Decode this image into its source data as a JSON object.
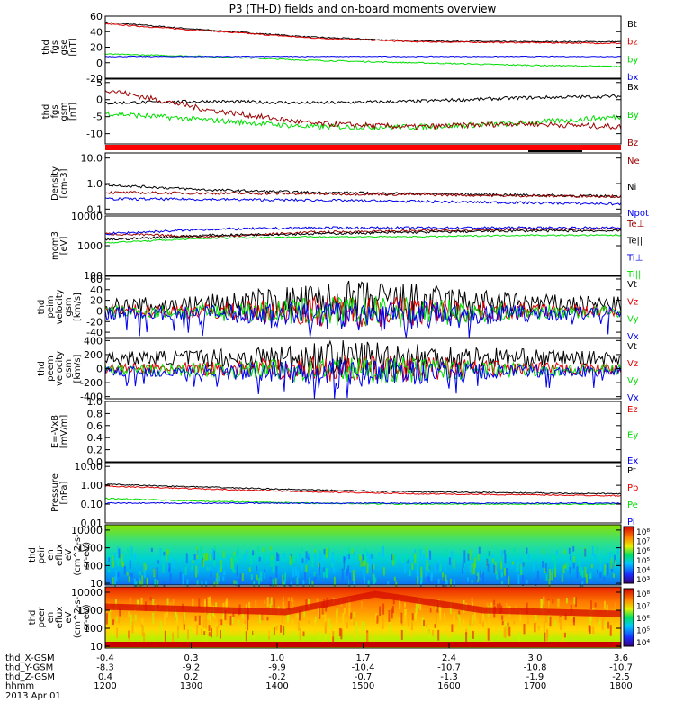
{
  "title": "P3 (TH-D) fields and on-board moments overview",
  "date": "2013 Apr 01",
  "time_axis": {
    "label": "hhmm",
    "ticks": [
      "1200",
      "1300",
      "1400",
      "1500",
      "1600",
      "1700",
      "1800"
    ],
    "rows": [
      {
        "label": "thd_X-GSM",
        "values": [
          "-0.4",
          "0.3",
          "1.0",
          "1.7",
          "2.4",
          "3.0",
          "3.6"
        ]
      },
      {
        "label": "thd_Y-GSM",
        "values": [
          "-8.3",
          "-9.2",
          "-9.9",
          "-10.4",
          "-10.7",
          "-10.8",
          "-10.7"
        ]
      },
      {
        "label": "thd_Z-GSM",
        "values": [
          "0.4",
          "0.2",
          "-0.2",
          "-0.7",
          "-1.3",
          "-1.9",
          "-2.5"
        ]
      }
    ]
  },
  "colors": {
    "black": "#000000",
    "red": "#e00000",
    "green": "#00dd00",
    "blue": "#0000ee",
    "darkred": "#9a0000"
  },
  "panels": [
    {
      "ylabel": [
        "thd",
        "fgs",
        "gse",
        "[nT]"
      ],
      "ticks": [
        {
          "v": 60,
          "t": "60"
        },
        {
          "v": 40,
          "t": "40"
        },
        {
          "v": 20,
          "t": "20"
        },
        {
          "v": 0,
          "t": "0"
        },
        {
          "v": -20,
          "t": "-20"
        }
      ],
      "legend": [
        {
          "t": "Bt",
          "c": "black"
        },
        {
          "t": "bz",
          "c": "red"
        },
        {
          "t": "by",
          "c": "green"
        },
        {
          "t": "bx",
          "c": "blue"
        }
      ]
    },
    {
      "ylabel": [
        "thd",
        "fgs",
        "gsm",
        "[nT]"
      ],
      "ticks": [
        {
          "v": 5,
          "t": "5"
        },
        {
          "v": 0,
          "t": "0"
        },
        {
          "v": -5,
          "t": "-5"
        },
        {
          "v": -10,
          "t": "-10"
        }
      ],
      "legend": [
        {
          "t": "Bx",
          "c": "black"
        },
        {
          "t": "By",
          "c": "green"
        },
        {
          "t": "Bz",
          "c": "darkred"
        }
      ]
    },
    {
      "ylabel": [
        "Density",
        "[cm-3]"
      ],
      "ticks": [
        {
          "v": 1,
          "t": "10.0"
        },
        {
          "v": 0,
          "t": "1.0"
        },
        {
          "v": -1,
          "t": "0.1"
        }
      ],
      "legend": [
        {
          "t": "Ne",
          "c": "darkred"
        },
        {
          "t": "Ni",
          "c": "black"
        },
        {
          "t": "Npot",
          "c": "blue"
        }
      ]
    },
    {
      "ylabel": [
        "mom3",
        "[eV]"
      ],
      "ticks": [
        {
          "v": 4,
          "t": "10000"
        },
        {
          "v": 3,
          "t": "1000"
        },
        {
          "v": 2,
          "t": "100"
        }
      ],
      "legend": [
        {
          "t": "Te⊥",
          "c": "darkred"
        },
        {
          "t": "Te||",
          "c": "black"
        },
        {
          "t": "Ti⊥",
          "c": "blue"
        },
        {
          "t": "Ti||",
          "c": "green"
        }
      ]
    },
    {
      "ylabel": [
        "thd",
        "peim",
        "velocity",
        "gsm",
        "[km/s]"
      ],
      "ticks": [
        {
          "v": 60,
          "t": "60"
        },
        {
          "v": 40,
          "t": "40"
        },
        {
          "v": 20,
          "t": "20"
        },
        {
          "v": 0,
          "t": "0"
        },
        {
          "v": -20,
          "t": "-20"
        },
        {
          "v": -40,
          "t": "-40"
        }
      ],
      "legend": [
        {
          "t": "Vt",
          "c": "black"
        },
        {
          "t": "Vz",
          "c": "red"
        },
        {
          "t": "Vy",
          "c": "green"
        },
        {
          "t": "Vx",
          "c": "blue"
        }
      ]
    },
    {
      "ylabel": [
        "thd",
        "peem",
        "velocity",
        "gsm",
        "[km/s]"
      ],
      "ticks": [
        {
          "v": 400,
          "t": "400"
        },
        {
          "v": 200,
          "t": "200"
        },
        {
          "v": 0,
          "t": "0"
        },
        {
          "v": -200,
          "t": "-200"
        },
        {
          "v": -400,
          "t": "-400"
        }
      ],
      "legend": [
        {
          "t": "Vt",
          "c": "black"
        },
        {
          "t": "Vz",
          "c": "red"
        },
        {
          "t": "Vy",
          "c": "green"
        },
        {
          "t": "Vx",
          "c": "blue"
        }
      ]
    },
    {
      "ylabel": [
        "E=-VxB",
        "[mV/m]"
      ],
      "ticks": [
        {
          "v": 1,
          "t": "1.0"
        },
        {
          "v": 0.8,
          "t": "0.8"
        },
        {
          "v": 0.6,
          "t": "0.6"
        },
        {
          "v": 0.4,
          "t": "0.4"
        },
        {
          "v": 0.2,
          "t": "0.2"
        },
        {
          "v": 0,
          "t": "0.0"
        }
      ],
      "legend": [
        {
          "t": "Ez",
          "c": "red"
        },
        {
          "t": "Ey",
          "c": "green"
        },
        {
          "t": "Ex",
          "c": "blue"
        }
      ]
    },
    {
      "ylabel": [
        "Pressure",
        "[nPa]"
      ],
      "ticks": [
        {
          "v": 1,
          "t": "10.00"
        },
        {
          "v": 0,
          "t": "1.00"
        },
        {
          "v": -1,
          "t": "0.10"
        },
        {
          "v": -2,
          "t": "0.01"
        }
      ],
      "legend": [
        {
          "t": "Pt",
          "c": "black"
        },
        {
          "t": "Pb",
          "c": "red"
        },
        {
          "t": "Pe",
          "c": "green"
        },
        {
          "t": "Pi",
          "c": "blue"
        }
      ]
    },
    {
      "ylabel": [
        "thd",
        "peir",
        "en",
        "eflux",
        "eV",
        "(cm^2-s-",
        "sr-eV)"
      ],
      "ticks": [
        {
          "v": 4,
          "t": "10000"
        },
        {
          "v": 3,
          "t": "1000"
        },
        {
          "v": 2,
          "t": "100"
        },
        {
          "v": 1,
          "t": "10"
        }
      ],
      "cbar": [
        "10⁸",
        "10⁷",
        "10⁶",
        "10⁵",
        "10⁴",
        "10³"
      ]
    },
    {
      "ylabel": [
        "thd",
        "peer",
        "en",
        "eflux",
        "eV",
        "(cm^2-s-",
        "sr-eV)"
      ],
      "ticks": [
        {
          "v": 4,
          "t": "10000"
        },
        {
          "v": 3,
          "t": "1000"
        },
        {
          "v": 2,
          "t": "100"
        },
        {
          "v": 1,
          "t": "10"
        }
      ],
      "cbar": [
        "10⁸",
        "10⁷",
        "10⁶",
        "10⁵",
        "10⁴"
      ]
    }
  ],
  "chart_data": {
    "type": "line",
    "x_axis": {
      "label": "hhmm",
      "ticks": [
        "1200",
        "1300",
        "1400",
        "1500",
        "1600",
        "1700",
        "1800"
      ]
    },
    "panels": [
      {
        "name": "thd_fgs_gse",
        "ylim": [
          -20,
          60
        ],
        "series": [
          {
            "name": "Bt",
            "color": "black",
            "x": [
              0,
              0.2,
              0.4,
              0.6,
              0.8,
              1
            ],
            "values": [
              52,
              42,
              33,
              28,
              27,
              27
            ]
          },
          {
            "name": "bz",
            "color": "red",
            "x": [
              0,
              0.2,
              0.4,
              0.6,
              0.8,
              1
            ],
            "values": [
              50,
              41,
              32,
              27,
              26,
              25
            ]
          },
          {
            "name": "by",
            "color": "green",
            "x": [
              0,
              0.2,
              0.4,
              0.6,
              0.8,
              1
            ],
            "values": [
              11,
              8,
              3,
              0,
              -3,
              -5
            ]
          },
          {
            "name": "bx",
            "color": "blue",
            "x": [
              0,
              0.2,
              0.4,
              0.6,
              0.8,
              1
            ],
            "values": [
              8,
              8,
              8,
              8,
              8,
              8
            ]
          }
        ]
      },
      {
        "name": "thd_fgs_gsm",
        "ylim": [
          -13,
          6
        ],
        "series": [
          {
            "name": "Bx",
            "color": "black",
            "x": [
              0,
              0.2,
              0.4,
              0.6,
              0.8,
              1
            ],
            "values": [
              -1,
              -0.5,
              -1,
              -0.5,
              0.5,
              1
            ]
          },
          {
            "name": "By",
            "color": "green",
            "x": [
              0,
              0.2,
              0.4,
              0.6,
              0.8,
              1
            ],
            "values": [
              -4,
              -6,
              -8,
              -8,
              -7,
              -5
            ]
          },
          {
            "name": "Bz",
            "color": "darkred",
            "x": [
              0,
              0.2,
              0.4,
              0.6,
              0.8,
              1
            ],
            "values": [
              3,
              -3,
              -7,
              -8,
              -7,
              -8
            ]
          }
        ]
      },
      {
        "name": "Density",
        "ylim": [
          -1.2,
          1.2
        ],
        "log": true,
        "series": [
          {
            "name": "Ni",
            "color": "black",
            "x": [
              0,
              0.2,
              0.4,
              0.6,
              0.8,
              1
            ],
            "values": [
              -0.05,
              -0.25,
              -0.35,
              -0.4,
              -0.45,
              -0.5
            ]
          },
          {
            "name": "Ne",
            "color": "darkred",
            "x": [
              0,
              0.2,
              0.4,
              0.6,
              0.8,
              1
            ],
            "values": [
              -0.35,
              -0.38,
              -0.4,
              -0.43,
              -0.48,
              -0.5
            ]
          },
          {
            "name": "Npot",
            "color": "blue",
            "x": [
              0,
              0.2,
              0.4,
              0.6,
              0.8,
              1
            ],
            "values": [
              -0.6,
              -0.62,
              -0.65,
              -0.7,
              -0.75,
              -0.8
            ]
          }
        ]
      },
      {
        "name": "mom3",
        "ylim": [
          2,
          4
        ],
        "log": true,
        "series": [
          {
            "name": "Te⊥",
            "color": "darkred",
            "x": [
              0,
              0.2,
              0.4,
              0.6,
              0.8,
              1
            ],
            "values": [
              3.4,
              3.3,
              3.45,
              3.5,
              3.55,
              3.55
            ]
          },
          {
            "name": "Te||",
            "color": "black",
            "x": [
              0,
              0.2,
              0.4,
              0.6,
              0.8,
              1
            ],
            "values": [
              3.2,
              3.35,
              3.4,
              3.45,
              3.5,
              3.5
            ]
          },
          {
            "name": "Ti⊥",
            "color": "blue",
            "x": [
              0,
              0.2,
              0.4,
              0.6,
              0.8,
              1
            ],
            "values": [
              3.4,
              3.55,
              3.6,
              3.6,
              3.6,
              3.6
            ]
          },
          {
            "name": "Ti||",
            "color": "green",
            "x": [
              0,
              0.2,
              0.4,
              0.6,
              0.8,
              1
            ],
            "values": [
              3.1,
              3.25,
              3.3,
              3.3,
              3.35,
              3.35
            ]
          }
        ]
      },
      {
        "name": "peim_velocity",
        "ylim": [
          -50,
          65
        ],
        "series": [
          {
            "name": "Vt",
            "color": "black",
            "x": [
              0,
              0.5,
              1
            ],
            "values": [
              8,
              18,
              12
            ]
          },
          {
            "name": "Vz",
            "color": "red",
            "x": [
              0,
              0.5,
              1
            ],
            "values": [
              0,
              0,
              0
            ]
          },
          {
            "name": "Vy",
            "color": "green",
            "x": [
              0,
              0.5,
              1
            ],
            "values": [
              -2,
              -2,
              -2
            ]
          },
          {
            "name": "Vx",
            "color": "blue",
            "x": [
              0,
              0.5,
              1
            ],
            "values": [
              -4,
              -8,
              -4
            ]
          }
        ]
      },
      {
        "name": "peem_velocity",
        "ylim": [
          -430,
          430
        ],
        "series": [
          {
            "name": "Vt",
            "color": "black",
            "x": [
              0,
              0.5,
              1
            ],
            "values": [
              150,
              160,
              150
            ]
          },
          {
            "name": "Vz",
            "color": "red",
            "x": [
              0,
              0.5,
              1
            ],
            "values": [
              0,
              0,
              0
            ]
          },
          {
            "name": "Vy",
            "color": "green",
            "x": [
              0,
              0.5,
              1
            ],
            "values": [
              -20,
              -20,
              -20
            ]
          },
          {
            "name": "Vx",
            "color": "blue",
            "x": [
              0,
              0.5,
              1
            ],
            "values": [
              -40,
              -50,
              -40
            ]
          }
        ]
      },
      {
        "name": "E=-VxB",
        "ylim": [
          0,
          1
        ],
        "series": []
      },
      {
        "name": "Pressure",
        "ylim": [
          -2,
          1.2
        ],
        "log": true,
        "series": [
          {
            "name": "Pt",
            "color": "black",
            "x": [
              0,
              0.2,
              0.4,
              0.6,
              0.8,
              1
            ],
            "values": [
              0.05,
              -0.1,
              -0.25,
              -0.35,
              -0.4,
              -0.45
            ]
          },
          {
            "name": "Pb",
            "color": "red",
            "x": [
              0,
              0.2,
              0.4,
              0.6,
              0.8,
              1
            ],
            "values": [
              -0.05,
              -0.2,
              -0.35,
              -0.45,
              -0.5,
              -0.55
            ]
          },
          {
            "name": "Pe",
            "color": "green",
            "x": [
              0,
              0.2,
              0.4,
              0.6,
              0.8,
              1
            ],
            "values": [
              -0.7,
              -0.85,
              -0.95,
              -1.0,
              -1.0,
              -1.0
            ]
          },
          {
            "name": "Pi",
            "color": "blue",
            "x": [
              0,
              0.2,
              0.4,
              0.6,
              0.8,
              1
            ],
            "values": [
              -0.95,
              -0.95,
              -0.95,
              -0.95,
              -0.95,
              -0.95
            ]
          }
        ]
      },
      {
        "name": "peir_en_eflux",
        "type": "heatmap",
        "ylim": [
          0.9,
          4.3
        ],
        "log": true
      },
      {
        "name": "peer_en_eflux",
        "type": "heatmap",
        "ylim": [
          0.9,
          4.3
        ],
        "log": true
      }
    ]
  }
}
